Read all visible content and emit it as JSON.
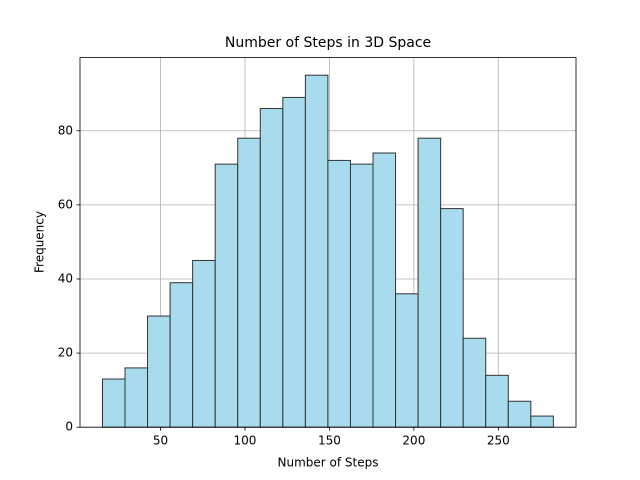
{
  "chart_data": {
    "type": "histogram",
    "title": "Number of Steps in 3D Space",
    "xlabel": "Number of Steps",
    "ylabel": "Frequency",
    "bins": [
      15.6,
      28.95,
      42.3,
      55.65,
      69,
      82.35,
      95.7,
      109.05,
      122.4,
      135.75,
      149.1,
      162.45,
      175.8,
      189.15,
      202.5,
      215.85,
      229.2,
      242.55,
      255.9,
      269.25,
      282.6
    ],
    "values": [
      13,
      16,
      30,
      39,
      45,
      71,
      78,
      86,
      89,
      95,
      72,
      71,
      74,
      36,
      78,
      59,
      24,
      14,
      7,
      3
    ],
    "color": "#a8dbee",
    "edgecolor": "#333333",
    "xlim": [
      2.3,
      296
    ],
    "xticks": [
      50,
      100,
      150,
      200,
      250
    ],
    "ylim": [
      0,
      99.75
    ],
    "yticks": [
      0,
      20,
      40,
      60,
      80
    ],
    "grid": true
  }
}
